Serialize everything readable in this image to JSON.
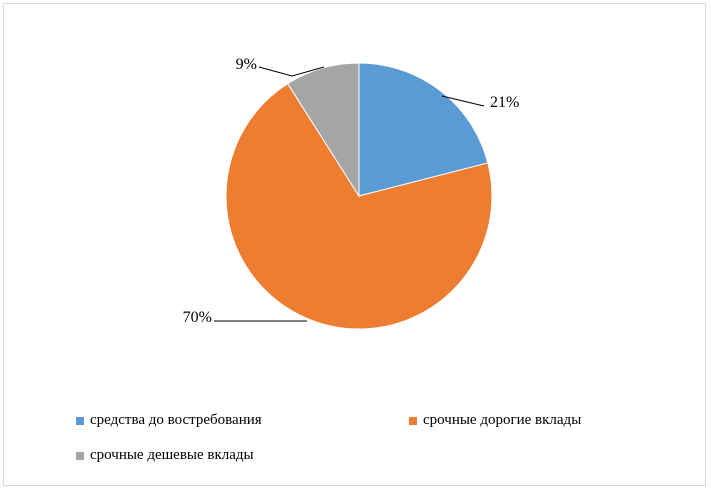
{
  "chart_data": {
    "type": "pie",
    "title": "",
    "slices": [
      {
        "label": "средства до востребования",
        "value": 21,
        "display": "21%",
        "color": "#5b9bd5"
      },
      {
        "label": "срочные дорогие вклады",
        "value": 70,
        "display": "70%",
        "color": "#ed7d31"
      },
      {
        "label": "срочные дешевые вклады",
        "value": 9,
        "display": "9%",
        "color": "#a5a5a5"
      }
    ],
    "legend_position": "bottom"
  }
}
